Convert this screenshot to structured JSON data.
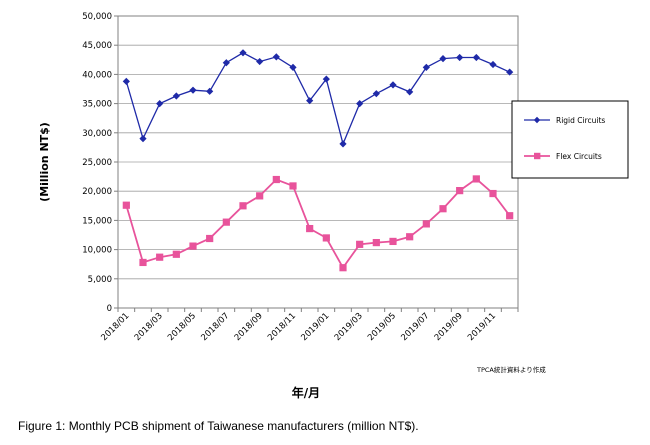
{
  "chart_data": {
    "type": "line",
    "ylabel": "(Million NT$)",
    "xlabel": "年/月",
    "ylim": [
      0,
      50000
    ],
    "yticks": [
      0,
      5000,
      10000,
      15000,
      20000,
      25000,
      30000,
      35000,
      40000,
      45000,
      50000
    ],
    "ytick_labels": [
      "0",
      "5,000",
      "10,000",
      "15,000",
      "20,000",
      "25,000",
      "30,000",
      "35,000",
      "40,000",
      "45,000",
      "50,000"
    ],
    "categories": [
      "2018/01",
      "2018/02",
      "2018/03",
      "2018/04",
      "2018/05",
      "2018/06",
      "2018/07",
      "2018/08",
      "2018/09",
      "2018/10",
      "2018/11",
      "2018/12",
      "2019/01",
      "2019/02",
      "2019/03",
      "2019/04",
      "2019/05",
      "2019/06",
      "2019/07",
      "2019/08",
      "2019/09",
      "2019/10",
      "2019/11",
      "2019/12"
    ],
    "xtick_labels": [
      "2018/01",
      "2018/03",
      "2018/05",
      "2018/07",
      "2018/09",
      "2018/11",
      "2019/01",
      "2019/03",
      "2019/05",
      "2019/07",
      "2019/09",
      "2019/11"
    ],
    "grid": true,
    "legend_position": "right",
    "series": [
      {
        "name": "Rigid Circuits",
        "color": "#1f2aa8",
        "marker": "diamond",
        "values": [
          38800,
          29000,
          35000,
          36300,
          37300,
          37100,
          42000,
          43700,
          42200,
          43000,
          41200,
          35500,
          39200,
          28100,
          35000,
          36700,
          38200,
          37000,
          41200,
          42700,
          42900,
          42900,
          41700,
          40400
        ]
      },
      {
        "name": "Flex Circuits",
        "color": "#e8539b",
        "marker": "square",
        "values": [
          17600,
          7800,
          8700,
          9200,
          10600,
          11900,
          14700,
          17500,
          19200,
          22000,
          20900,
          13600,
          12000,
          6900,
          10900,
          11200,
          11400,
          12200,
          14400,
          17000,
          20100,
          22100,
          19600,
          15800
        ]
      }
    ],
    "source_note": "TPCA統計資料より作成"
  },
  "caption": "Figure 1: Monthly PCB shipment of Taiwanese manufacturers (million NT$)."
}
